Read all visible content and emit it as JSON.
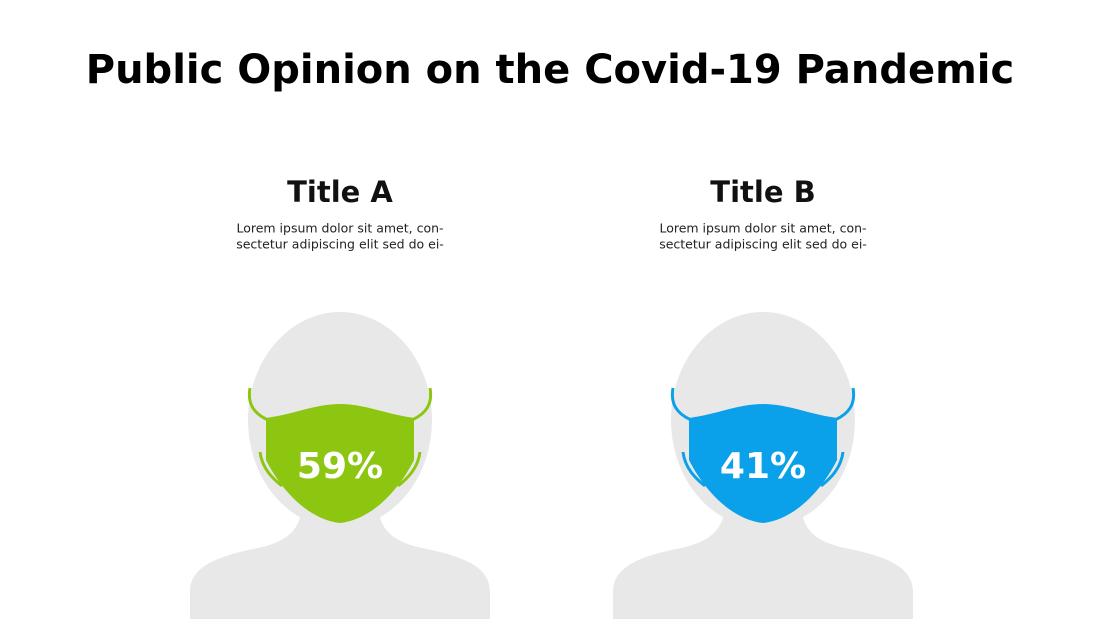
{
  "header": {
    "title": "Public Opinion on the Covid-19 Pandemic"
  },
  "panels": [
    {
      "title": "Title A",
      "text": [
        "Lorem ipsum dolor sit amet, con-",
        "sectetur adipiscing elit sed do ei-"
      ],
      "value_label": "59%",
      "color": "#8cc610"
    },
    {
      "title": "Title B",
      "text": [
        "Lorem ipsum dolor sit amet, con-",
        "sectetur adipiscing elit sed do ei-"
      ],
      "value_label": "41%",
      "color": "#0ba0ea"
    }
  ]
}
